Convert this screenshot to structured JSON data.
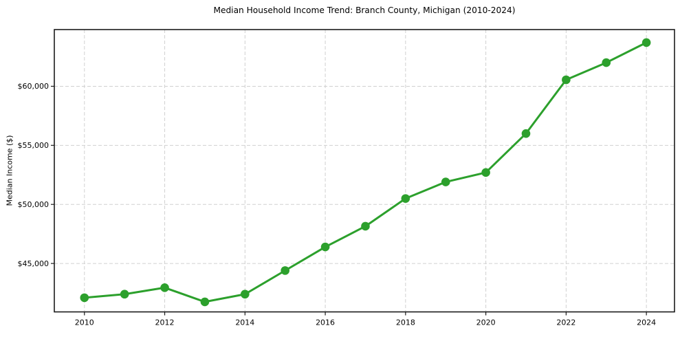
{
  "chart_data": {
    "type": "line",
    "title": "Median Household Income Trend: Branch County, Michigan (2010-2024)",
    "xlabel": "",
    "ylabel": "Median Income ($)",
    "x": [
      2010,
      2011,
      2012,
      2013,
      2014,
      2015,
      2016,
      2017,
      2018,
      2019,
      2020,
      2021,
      2022,
      2023,
      2024
    ],
    "series": [
      {
        "name": "Median Income ($)",
        "values": [
          42100,
          42400,
          42950,
          41750,
          42400,
          44400,
          46400,
          48150,
          50500,
          51900,
          52700,
          56000,
          60550,
          62000,
          63700
        ],
        "color": "#2ca02c",
        "marker": "circle"
      }
    ],
    "x_ticks": [
      2010,
      2012,
      2014,
      2016,
      2018,
      2020,
      2022,
      2024
    ],
    "y_ticks": [
      45000,
      50000,
      55000,
      60000
    ],
    "y_tick_labels": [
      "$45,000",
      "$50,000",
      "$55,000",
      "$60,000"
    ],
    "xlim": [
      2009.25,
      2024.7
    ],
    "ylim": [
      40900,
      64800
    ],
    "grid": true,
    "grid_style": "dashed",
    "legend": false,
    "background": "#ffffff"
  }
}
